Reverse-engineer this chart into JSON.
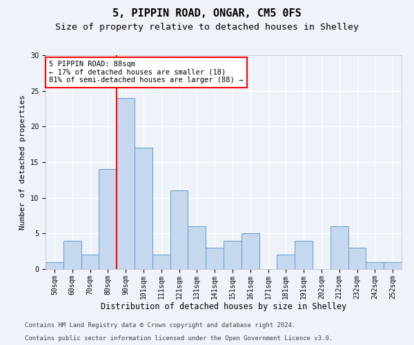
{
  "title1": "5, PIPPIN ROAD, ONGAR, CM5 0FS",
  "title2": "Size of property relative to detached houses in Shelley",
  "xlabel": "Distribution of detached houses by size in Shelley",
  "ylabel": "Number of detached properties",
  "categories": [
    "50sqm",
    "60sqm",
    "70sqm",
    "80sqm",
    "90sqm",
    "101sqm",
    "111sqm",
    "121sqm",
    "131sqm",
    "141sqm",
    "151sqm",
    "161sqm",
    "171sqm",
    "181sqm",
    "191sqm",
    "202sqm",
    "212sqm",
    "232sqm",
    "242sqm",
    "252sqm"
  ],
  "values": [
    1,
    4,
    2,
    14,
    24,
    17,
    2,
    11,
    6,
    3,
    4,
    5,
    0,
    2,
    4,
    0,
    6,
    3,
    1,
    1
  ],
  "bar_color": "#c5d8ed",
  "bar_edge_color": "#5b9bd5",
  "red_line_index": 4,
  "annotation_line1": "5 PIPPIN ROAD: 88sqm",
  "annotation_line2": "← 17% of detached houses are smaller (18)",
  "annotation_line3": "81% of semi-detached houses are larger (88) →",
  "annotation_box_color": "white",
  "annotation_box_edge_color": "red",
  "red_line_color": "red",
  "ylim": [
    0,
    30
  ],
  "yticks": [
    0,
    5,
    10,
    15,
    20,
    25,
    30
  ],
  "footer1": "Contains HM Land Registry data © Crown copyright and database right 2024.",
  "footer2": "Contains public sector information licensed under the Open Government Licence v3.0.",
  "background_color": "#eef2f9",
  "grid_color": "white",
  "title1_fontsize": 11,
  "title2_fontsize": 9.5,
  "ylabel_fontsize": 8,
  "xlabel_fontsize": 8.5,
  "tick_fontsize": 7,
  "annotation_fontsize": 7.5,
  "footer_fontsize": 6.5
}
